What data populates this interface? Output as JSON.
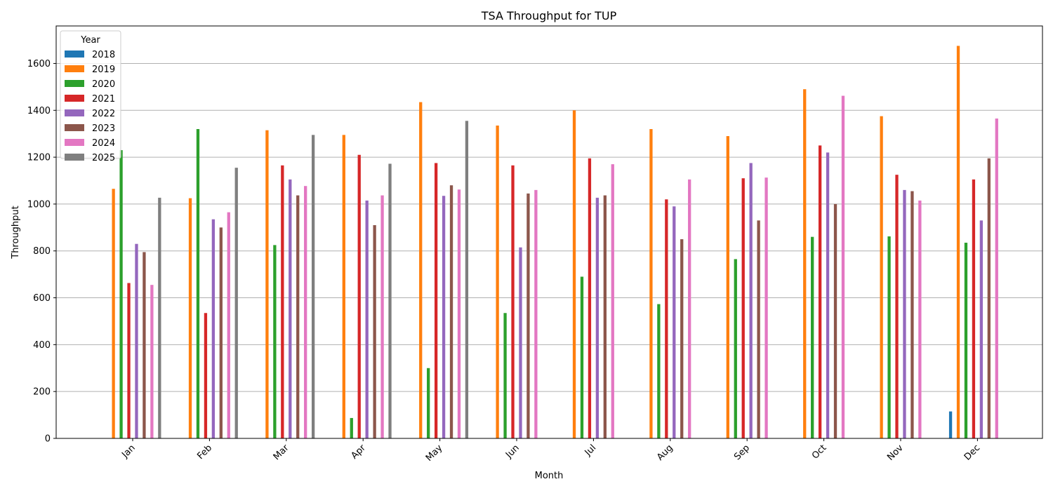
{
  "chart_data": {
    "type": "bar",
    "title": "TSA Throughput for TUP",
    "xlabel": "Month",
    "ylabel": "Throughput",
    "ylim": [
      0,
      1760
    ],
    "yticks": [
      0,
      200,
      400,
      600,
      800,
      1000,
      1200,
      1400,
      1600
    ],
    "grid": true,
    "legend_title": "Year",
    "legend_position": "top-left",
    "categories": [
      "Jan",
      "Feb",
      "Mar",
      "Apr",
      "May",
      "Jun",
      "Jul",
      "Aug",
      "Sep",
      "Oct",
      "Nov",
      "Dec"
    ],
    "series": [
      {
        "name": "2018",
        "color": "#1f77b4",
        "values": [
          null,
          null,
          null,
          null,
          null,
          null,
          null,
          null,
          null,
          null,
          null,
          115
        ]
      },
      {
        "name": "2019",
        "color": "#ff7f0e",
        "values": [
          1065,
          1025,
          1315,
          1295,
          1435,
          1335,
          1400,
          1320,
          1290,
          1490,
          1375,
          1675
        ]
      },
      {
        "name": "2020",
        "color": "#2ca02c",
        "values": [
          1230,
          1320,
          825,
          87,
          300,
          535,
          690,
          573,
          765,
          860,
          862,
          835
        ]
      },
      {
        "name": "2021",
        "color": "#d62728",
        "values": [
          663,
          535,
          1165,
          1210,
          1175,
          1165,
          1195,
          1020,
          1110,
          1250,
          1125,
          1105
        ]
      },
      {
        "name": "2022",
        "color": "#9467bd",
        "values": [
          830,
          935,
          1105,
          1015,
          1035,
          815,
          1027,
          990,
          1175,
          1220,
          1060,
          930
        ]
      },
      {
        "name": "2023",
        "color": "#8c564b",
        "values": [
          795,
          900,
          1037,
          910,
          1080,
          1045,
          1037,
          850,
          930,
          1000,
          1055,
          1195
        ]
      },
      {
        "name": "2024",
        "color": "#e377c2",
        "values": [
          655,
          965,
          1077,
          1037,
          1062,
          1060,
          1170,
          1105,
          1113,
          1462,
          1015,
          1365
        ]
      },
      {
        "name": "2025",
        "color": "#7f7f7f",
        "values": [
          1027,
          1155,
          1295,
          1172,
          1355,
          null,
          null,
          null,
          null,
          null,
          null,
          null
        ]
      }
    ]
  }
}
